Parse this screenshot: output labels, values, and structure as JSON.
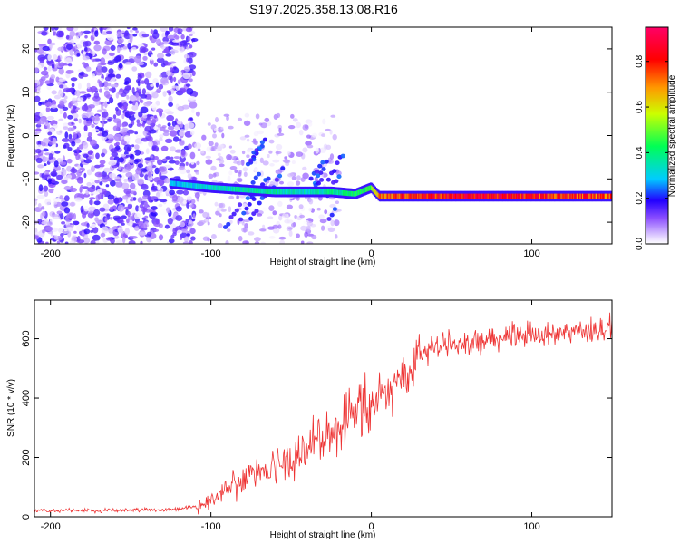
{
  "title": "S197.2025.358.13.08.R16",
  "chart_data": [
    {
      "type": "heatmap",
      "name": "spectrogram",
      "xlabel": "Height of straight line (km)",
      "ylabel": "Frequency (Hz)",
      "xlim": [
        -210,
        150
      ],
      "ylim": [
        -25,
        25
      ],
      "x_ticks": [
        -200,
        -100,
        0,
        100
      ],
      "y_ticks": [
        -20,
        -10,
        0,
        10,
        20
      ],
      "colorbar": {
        "label": "Normalized spectral amplitude",
        "range": [
          0,
          0.95
        ],
        "ticks": [
          0.0,
          0.2,
          0.4,
          0.6,
          0.8
        ],
        "tick_labels": [
          "0.0",
          "0.2",
          "0.4",
          "0.6",
          "0.8"
        ]
      },
      "dominant_ridge": {
        "description": "strong narrow band",
        "x": [
          -125,
          -100,
          -80,
          -60,
          -40,
          -25,
          -10,
          0,
          5,
          20,
          50,
          80,
          110,
          150
        ],
        "frequency_hz": [
          -11,
          -12,
          -12.5,
          -13,
          -13,
          -13,
          -13.5,
          -12,
          -14,
          -14,
          -14,
          -14,
          -14,
          -14
        ],
        "amplitude": [
          0.3,
          0.35,
          0.4,
          0.4,
          0.35,
          0.4,
          0.45,
          0.5,
          0.75,
          0.85,
          0.9,
          0.9,
          0.85,
          0.8
        ]
      }
    },
    {
      "type": "line",
      "name": "snr",
      "xlabel": "Height of straight line (km)",
      "ylabel": "SNR (10 * v/v)",
      "xlim": [
        -210,
        150
      ],
      "ylim": [
        0,
        730
      ],
      "x_ticks": [
        -200,
        -100,
        0,
        100
      ],
      "y_ticks": [
        0,
        200,
        400,
        600
      ],
      "color": "#ee3333",
      "trend": {
        "x": [
          -210,
          -150,
          -120,
          -105,
          -90,
          -80,
          -60,
          -45,
          -35,
          -25,
          -15,
          -5,
          0,
          10,
          20,
          30,
          40,
          60,
          80,
          100,
          120,
          150
        ],
        "y": [
          20,
          22,
          25,
          40,
          90,
          130,
          160,
          200,
          260,
          290,
          320,
          370,
          400,
          420,
          470,
          540,
          570,
          590,
          600,
          610,
          620,
          640
        ]
      }
    }
  ]
}
